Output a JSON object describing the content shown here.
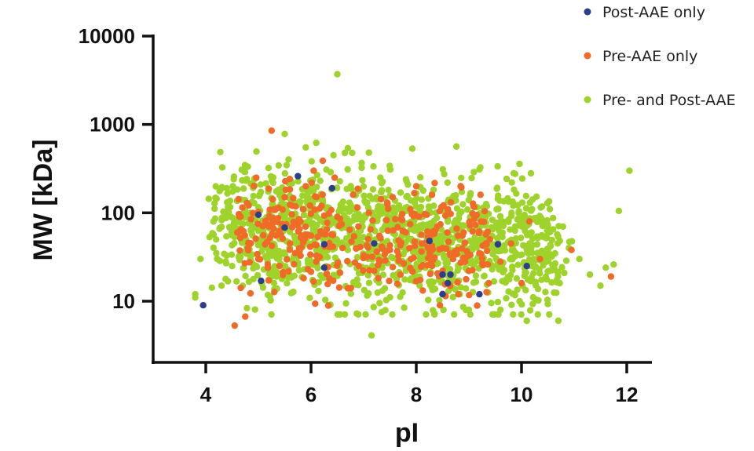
{
  "chart_data": {
    "type": "scatter",
    "xlabel": "pI",
    "ylabel": "MW [kDa]",
    "xlim": [
      3,
      12.5
    ],
    "ylim": [
      1,
      10000
    ],
    "y_scale": "log",
    "x_ticks": [
      4,
      6,
      8,
      10,
      12
    ],
    "y_ticks": [
      10,
      100,
      1000,
      10000
    ],
    "x_tick_labels": [
      "4",
      "6",
      "8",
      "10",
      "12"
    ],
    "y_tick_labels": [
      "10",
      "100",
      "1000",
      "10000"
    ],
    "grid": false,
    "legend_position": "top-right",
    "series": [
      {
        "name": "Post-AAE only",
        "color": "#2b3f8c",
        "points": [
          [
            3.95,
            9
          ],
          [
            5.0,
            95
          ],
          [
            5.05,
            17
          ],
          [
            5.5,
            68
          ],
          [
            5.75,
            260
          ],
          [
            6.25,
            44
          ],
          [
            6.25,
            24
          ],
          [
            6.4,
            190
          ],
          [
            7.2,
            45
          ],
          [
            8.25,
            48
          ],
          [
            8.5,
            20
          ],
          [
            8.5,
            12
          ],
          [
            8.6,
            16
          ],
          [
            8.65,
            20
          ],
          [
            9.2,
            12
          ],
          [
            9.55,
            44
          ],
          [
            10.1,
            25
          ]
        ]
      },
      {
        "name": "Pre-AAE only",
        "color": "#f06a28",
        "points": [
          [
            4.55,
            5.3
          ],
          [
            4.75,
            6.7
          ],
          [
            5.25,
            850
          ],
          [
            4.6,
            60
          ],
          [
            4.8,
            40
          ],
          [
            5.0,
            30
          ],
          [
            5.2,
            70
          ],
          [
            5.3,
            110
          ],
          [
            5.4,
            25
          ],
          [
            5.5,
            150
          ],
          [
            5.6,
            45
          ],
          [
            5.7,
            35
          ],
          [
            5.8,
            80
          ],
          [
            5.9,
            200
          ],
          [
            6.0,
            55
          ],
          [
            6.05,
            300
          ],
          [
            6.1,
            28
          ],
          [
            6.2,
            120
          ],
          [
            6.3,
            65
          ],
          [
            6.35,
            18
          ],
          [
            6.45,
            250
          ],
          [
            6.5,
            90
          ],
          [
            6.6,
            40
          ],
          [
            6.7,
            14
          ],
          [
            6.8,
            160
          ],
          [
            6.9,
            70
          ],
          [
            7.0,
            33
          ],
          [
            7.1,
            100
          ],
          [
            7.2,
            22
          ],
          [
            7.3,
            55
          ],
          [
            7.45,
            130
          ],
          [
            7.5,
            38
          ],
          [
            7.6,
            85
          ],
          [
            7.7,
            20
          ],
          [
            7.8,
            60
          ],
          [
            7.9,
            30
          ],
          [
            8.0,
            200
          ],
          [
            8.1,
            45
          ],
          [
            8.2,
            95
          ],
          [
            8.3,
            25
          ],
          [
            8.4,
            70
          ],
          [
            8.45,
            9
          ],
          [
            8.5,
            40
          ],
          [
            8.6,
            110
          ],
          [
            8.7,
            30
          ],
          [
            8.8,
            12
          ],
          [
            8.9,
            60
          ],
          [
            9.0,
            22
          ],
          [
            9.1,
            85
          ],
          [
            9.2,
            35
          ],
          [
            9.4,
            50
          ],
          [
            9.6,
            28
          ],
          [
            9.8,
            45
          ],
          [
            10.0,
            16
          ],
          [
            10.15,
            80
          ],
          [
            10.35,
            30
          ],
          [
            10.95,
            38
          ],
          [
            11.7,
            19
          ]
        ]
      },
      {
        "name": "Pre- and Post-AAE",
        "color": "#9ed32b",
        "points": [
          [
            6.5,
            3700
          ],
          [
            12.05,
            300
          ],
          [
            11.85,
            105
          ],
          [
            7.15,
            4.1
          ],
          [
            3.8,
            12
          ],
          [
            3.8,
            11
          ],
          [
            3.9,
            30
          ],
          [
            4.2,
            35
          ],
          [
            4.3,
            15
          ],
          [
            4.4,
            190
          ],
          [
            4.5,
            25
          ],
          [
            5.5,
            780
          ],
          [
            5.9,
            550
          ],
          [
            6.1,
            620
          ],
          [
            6.7,
            540
          ],
          [
            7.1,
            480
          ],
          [
            9.2,
            310
          ],
          [
            9.9,
            165
          ],
          [
            10.2,
            110
          ],
          [
            10.6,
            65
          ],
          [
            10.9,
            40
          ],
          [
            11.1,
            30
          ],
          [
            11.3,
            20
          ],
          [
            11.5,
            15
          ],
          [
            11.6,
            24
          ],
          [
            11.75,
            26
          ],
          [
            10.7,
            6
          ],
          [
            10.1,
            6
          ],
          [
            9.6,
            8
          ],
          [
            9.0,
            8
          ]
        ]
      }
    ]
  }
}
